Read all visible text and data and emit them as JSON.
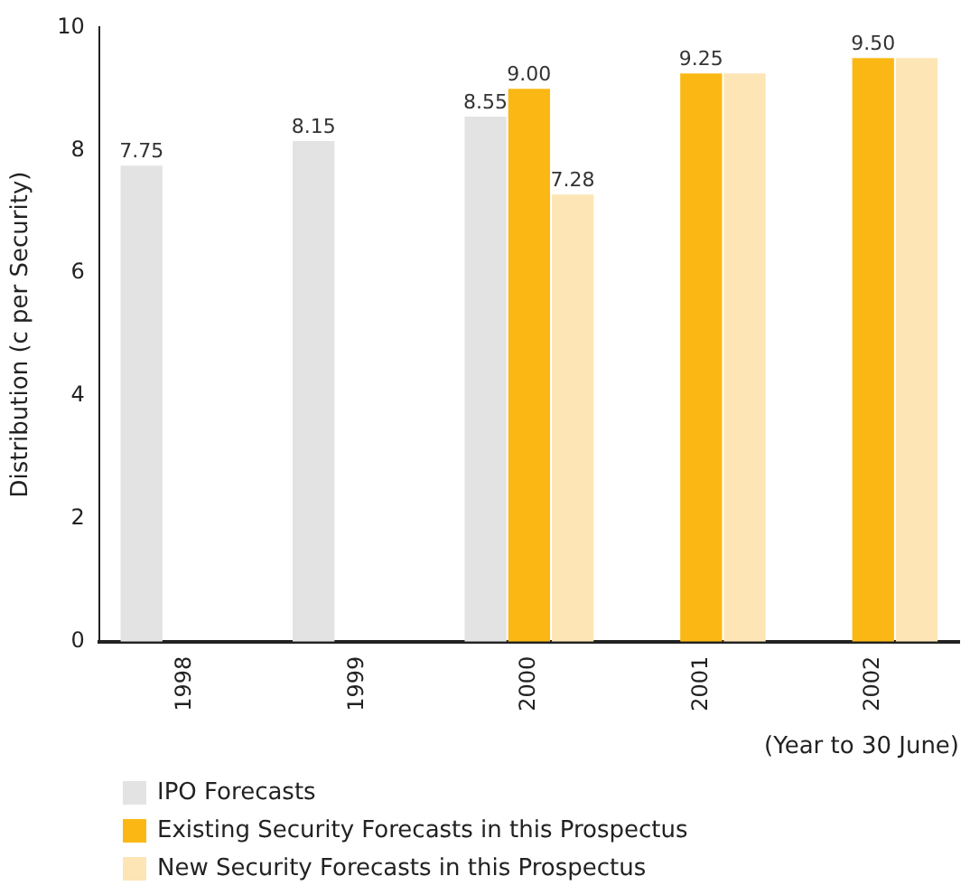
{
  "chart_data": {
    "type": "bar",
    "ylabel": "Distribution (c per Security)",
    "xlabel": "(Year to 30 June)",
    "categories": [
      "1998",
      "1999",
      "2000",
      "2001",
      "2002"
    ],
    "series": [
      {
        "name": "IPO Forecasts",
        "color": "#e3e3e3",
        "values": [
          7.75,
          8.15,
          8.55,
          null,
          null
        ],
        "value_labels": [
          "7.75",
          "8.15",
          "8.55",
          null,
          null
        ]
      },
      {
        "name": "Existing Security Forecasts in this Prospectus",
        "color": "#fbb814",
        "values": [
          null,
          null,
          9.0,
          9.25,
          9.5
        ],
        "value_labels": [
          null,
          null,
          "9.00",
          "9.25",
          "9.50"
        ]
      },
      {
        "name": "New Security Forecasts in this Prospectus",
        "color": "#fde5b6",
        "values": [
          null,
          null,
          7.28,
          9.25,
          9.5
        ],
        "value_labels": [
          null,
          null,
          "7.28",
          null,
          null
        ]
      }
    ],
    "ylim": [
      0,
      10
    ],
    "yticks": [
      0,
      2,
      4,
      6,
      8,
      10
    ],
    "grid": false,
    "legend": "bottom"
  }
}
